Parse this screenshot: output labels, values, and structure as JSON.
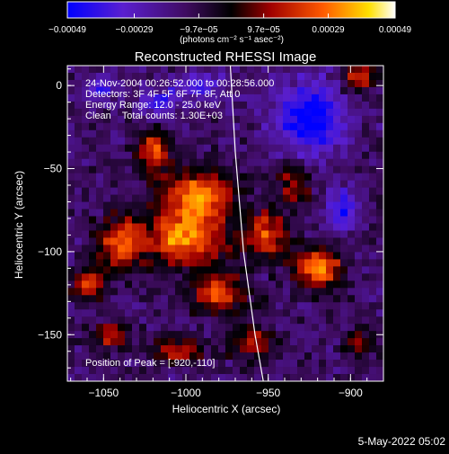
{
  "chart_data": {
    "type": "heatmap",
    "title": "Reconstructed RHESSI Image",
    "xlabel": "Heliocentric X (arcsec)",
    "ylabel": "Heliocentric Y (arcsec)",
    "xlim": [
      -1072,
      -880
    ],
    "ylim": [
      -178,
      12
    ],
    "x_ticks": [
      -1050,
      -1000,
      -950,
      -900
    ],
    "x_tick_labels": [
      "−1050",
      "−1000",
      "−950",
      "−900"
    ],
    "y_ticks": [
      0,
      -50,
      -100,
      -150
    ],
    "y_tick_labels": [
      "0",
      "−50",
      "−100",
      "−150"
    ],
    "colorbar": {
      "range": [
        -0.00049,
        0.00049
      ],
      "ticks": [
        -0.00049,
        -0.00029,
        -9.7e-05,
        9.7e-05,
        0.00029,
        0.00049
      ],
      "tick_labels": [
        "−0.00049",
        "−0.00029",
        "−9.7e−05",
        "9.7e−05",
        "0.00029",
        "0.00049"
      ],
      "units": "(photons cm⁻² s⁻¹ asec⁻²)",
      "colors": [
        "#0000ff",
        "#5a1fd0",
        "#400c62",
        "#000000",
        "#a00000",
        "#ff5a00",
        "#ffe000",
        "#ffffff"
      ]
    },
    "annotations": [
      "24-Nov-2004 00:26:52.000 to 00:28:56.000",
      "Detectors: 3F 4F 5F 6F 7F 8F, Att 0",
      "Energy Range: 12.0 - 25.0 keV",
      "Clean    Total counts: 1.30E+03"
    ],
    "peak_label": "Position of Peak = [-920,-110]",
    "peak_position": [
      -920,
      -110
    ],
    "limb_curve": [
      [
        -973,
        12
      ],
      [
        -970,
        -40
      ],
      [
        -965,
        -100
      ],
      [
        -958,
        -150
      ],
      [
        -953,
        -178
      ]
    ],
    "blobs": [
      {
        "x": -1020,
        "y": -40,
        "rx": 10,
        "ry": 12,
        "amp": 0.0004
      },
      {
        "x": -992,
        "y": -65,
        "rx": 22,
        "ry": 14,
        "amp": 0.00046
      },
      {
        "x": -1000,
        "y": -92,
        "rx": 24,
        "ry": 16,
        "amp": 0.00049
      },
      {
        "x": -1040,
        "y": -95,
        "rx": 14,
        "ry": 16,
        "amp": 0.00036
      },
      {
        "x": -1060,
        "y": -120,
        "rx": 10,
        "ry": 10,
        "amp": 0.00034
      },
      {
        "x": -980,
        "y": -125,
        "rx": 16,
        "ry": 12,
        "amp": 0.0004
      },
      {
        "x": -950,
        "y": -90,
        "rx": 12,
        "ry": 14,
        "amp": 0.00038
      },
      {
        "x": -920,
        "y": -110,
        "rx": 14,
        "ry": 12,
        "amp": 0.00049
      },
      {
        "x": -935,
        "y": -60,
        "rx": 10,
        "ry": 12,
        "amp": 0.00028
      },
      {
        "x": -1045,
        "y": -150,
        "rx": 10,
        "ry": 8,
        "amp": 0.0003
      },
      {
        "x": -960,
        "y": -155,
        "rx": 14,
        "ry": 10,
        "amp": 0.0003
      },
      {
        "x": -1005,
        "y": -160,
        "rx": 16,
        "ry": 8,
        "amp": 0.00026
      },
      {
        "x": -895,
        "y": 5,
        "rx": 10,
        "ry": 8,
        "amp": 0.00036
      },
      {
        "x": -895,
        "y": -155,
        "rx": 8,
        "ry": 10,
        "amp": 0.00022
      }
    ],
    "negative_regions": [
      {
        "x": -925,
        "y": -20,
        "rx": 20,
        "ry": 22,
        "amp": -0.0004
      },
      {
        "x": -990,
        "y": 0,
        "rx": 14,
        "ry": 8,
        "amp": -0.00025
      },
      {
        "x": -1050,
        "y": 0,
        "rx": 12,
        "ry": 8,
        "amp": -0.00022
      },
      {
        "x": -905,
        "y": -75,
        "rx": 10,
        "ry": 12,
        "amp": -0.0003
      },
      {
        "x": -1015,
        "y": -10,
        "rx": 12,
        "ry": 8,
        "amp": -0.00028
      }
    ]
  },
  "footer": {
    "date": "5-May-2022 05:02"
  }
}
